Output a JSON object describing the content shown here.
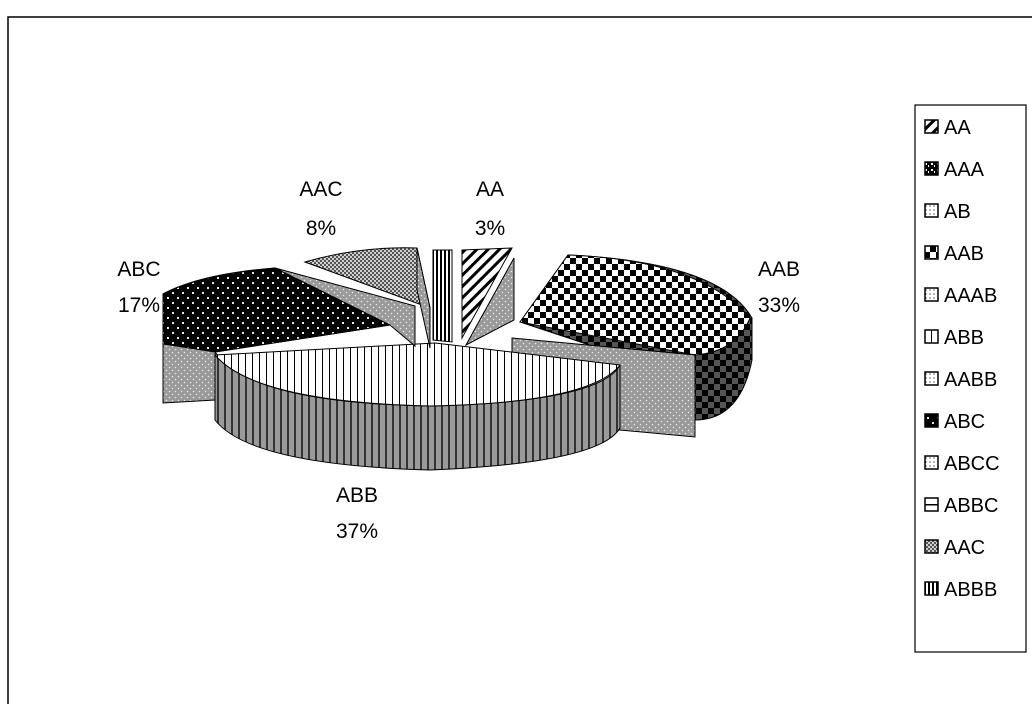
{
  "chart_data": {
    "type": "pie",
    "style": "3d-exploded",
    "title": "",
    "slices": [
      {
        "label": "AA",
        "value": 3
      },
      {
        "label": "AAA",
        "value": 0
      },
      {
        "label": "AB",
        "value": 0
      },
      {
        "label": "AAB",
        "value": 33
      },
      {
        "label": "AAAB",
        "value": 0
      },
      {
        "label": "ABB",
        "value": 37
      },
      {
        "label": "AABB",
        "value": 0
      },
      {
        "label": "ABC",
        "value": 17
      },
      {
        "label": "ABCC",
        "value": 0
      },
      {
        "label": "ABBC",
        "value": 0
      },
      {
        "label": "AAC",
        "value": 8
      },
      {
        "label": "ABBB",
        "value": 1
      }
    ],
    "data_labels": [
      {
        "category": "AA",
        "percent": "3%"
      },
      {
        "category": "AAB",
        "percent": "33%"
      },
      {
        "category": "ABB",
        "percent": "37%"
      },
      {
        "category": "ABC",
        "percent": "17%"
      },
      {
        "category": "AAC",
        "percent": "8%"
      }
    ],
    "legend": {
      "position": "right",
      "entries": [
        {
          "label": "AA",
          "pattern": "diag-hatch"
        },
        {
          "label": "AAA",
          "pattern": "speckle"
        },
        {
          "label": "AB",
          "pattern": "light-dots"
        },
        {
          "label": "AAB",
          "pattern": "checker"
        },
        {
          "label": "AAAB",
          "pattern": "light-dots"
        },
        {
          "label": "ABB",
          "pattern": "vertical-lines"
        },
        {
          "label": "AABB",
          "pattern": "light-dots"
        },
        {
          "label": "ABC",
          "pattern": "black-dots"
        },
        {
          "label": "ABCC",
          "pattern": "light-dots"
        },
        {
          "label": "ABBC",
          "pattern": "horizontal-line"
        },
        {
          "label": "AAC",
          "pattern": "gray-crosshatch"
        },
        {
          "label": "ABBB",
          "pattern": "dense-vertical"
        }
      ]
    }
  }
}
